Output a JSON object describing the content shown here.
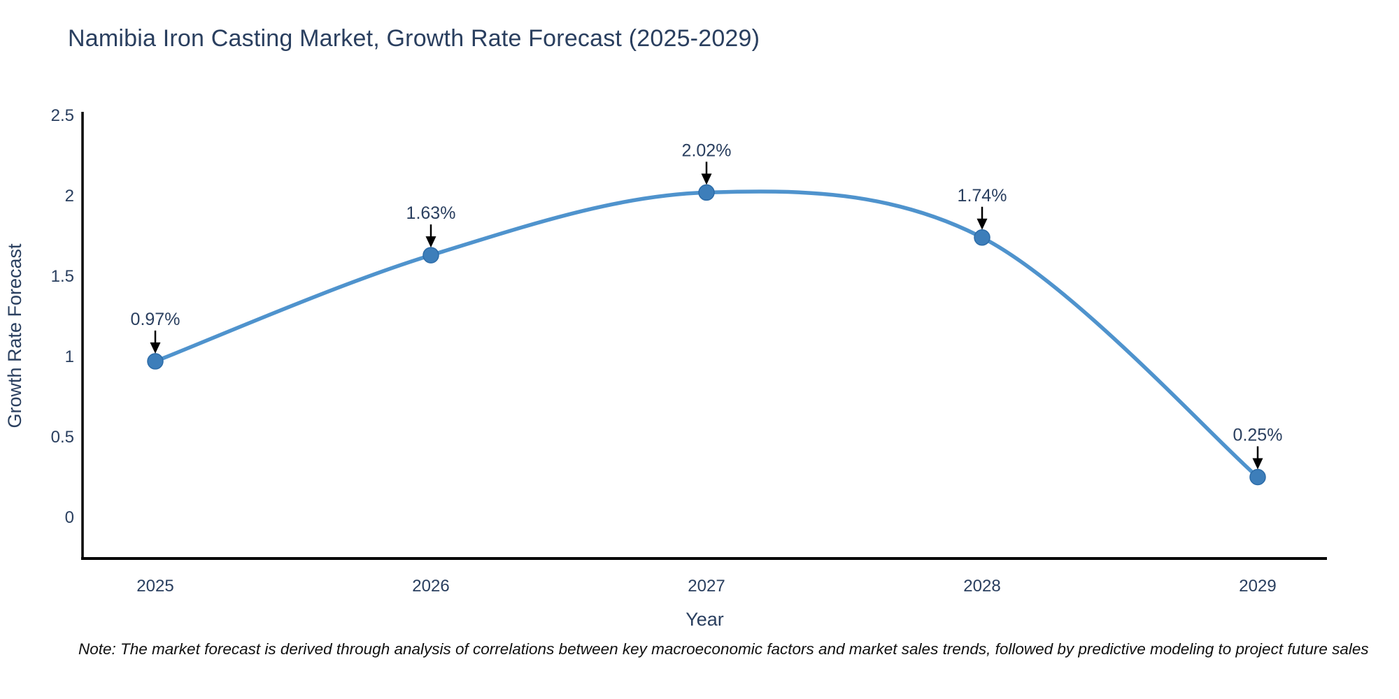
{
  "header": {
    "title": "Namibia Iron Casting Market, Growth Rate Forecast (2025-2029)"
  },
  "footnote": {
    "text": "Note: The market forecast is derived through analysis of correlations between key macroeconomic factors and market sales trends, followed by predictive modeling to project future sales"
  },
  "chart_data": {
    "type": "line",
    "title": "Namibia Iron Casting Market, Growth Rate Forecast (2025-2029)",
    "line_shape": "spline",
    "categories": [
      "2025",
      "2026",
      "2027",
      "2028",
      "2029"
    ],
    "x": [
      2025,
      2026,
      2027,
      2028,
      2029
    ],
    "series": [
      {
        "name": "Growth Rate Forecast",
        "values": [
          0.97,
          1.63,
          2.02,
          1.74,
          0.25
        ]
      }
    ],
    "point_labels": [
      "0.97%",
      "1.63%",
      "2.02%",
      "1.74%",
      "0.25%"
    ],
    "annotations_have_arrows": true,
    "xlabel": "Year",
    "ylabel": "Growth Rate Forecast",
    "xlim": [
      2024.74,
      2029.25
    ],
    "ylim": [
      -0.26,
      2.52
    ],
    "yticks": [
      2.5,
      2,
      1.5,
      1,
      0.5,
      0
    ],
    "ytick_labels": [
      "2.5",
      "2",
      "1.5",
      "1",
      "0.5",
      "0"
    ],
    "grid": false,
    "legend_position": "none",
    "colors": {
      "line": "#4f93cd",
      "marker": "#3d7eba",
      "marker_edge": "#2d6ca8",
      "annotation_text": "#2a3f5f",
      "annotation_arrow": "#000000",
      "axis_line": "#000000",
      "tick_text": "#2a3f5f",
      "axis_title_text": "#2a3f5f",
      "title_text": "#2a3f5f",
      "note_text": "#111111",
      "background": "#ffffff"
    }
  }
}
